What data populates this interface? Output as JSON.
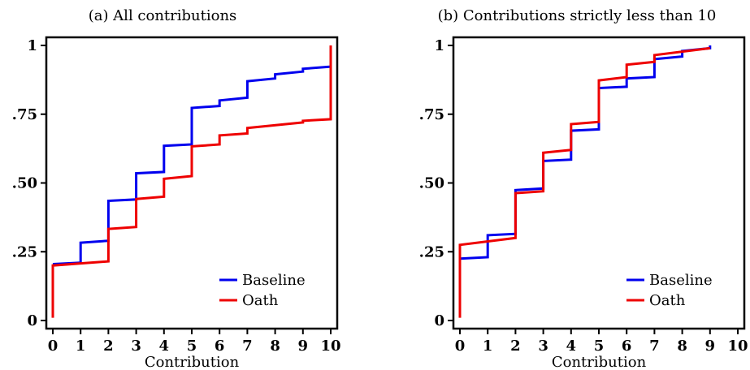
{
  "chart_data": [
    {
      "type": "line",
      "step": true,
      "title": "(a) All contributions",
      "xlabel": "Contribution",
      "ylabel": "",
      "xlim": [
        0,
        10
      ],
      "ylim": [
        0,
        1
      ],
      "x_ticks": [
        "0",
        "1",
        "2",
        "3",
        "4",
        "5",
        "6",
        "7",
        "8",
        "9",
        "10"
      ],
      "y_ticks": [
        {
          "value": 0,
          "label": "0"
        },
        {
          "value": 0.25,
          "label": ".25"
        },
        {
          "value": 0.5,
          "label": ".50"
        },
        {
          "value": 0.75,
          "label": ".75"
        },
        {
          "value": 1,
          "label": "1"
        }
      ],
      "legend_position": "bottom-right",
      "series": [
        {
          "name": "Baseline",
          "color": "#0000ee",
          "points": [
            [
              0,
              0.205
            ],
            [
              1,
              0.21
            ],
            [
              1,
              0.283
            ],
            [
              2,
              0.29
            ],
            [
              2,
              0.435
            ],
            [
              3,
              0.44
            ],
            [
              3,
              0.535
            ],
            [
              4,
              0.54
            ],
            [
              4,
              0.635
            ],
            [
              5,
              0.64
            ],
            [
              5,
              0.773
            ],
            [
              6,
              0.78
            ],
            [
              6,
              0.8
            ],
            [
              7,
              0.81
            ],
            [
              7,
              0.87
            ],
            [
              8,
              0.88
            ],
            [
              8,
              0.895
            ],
            [
              9,
              0.905
            ],
            [
              9,
              0.915
            ],
            [
              10,
              0.923
            ]
          ]
        },
        {
          "name": "Oath",
          "color": "#ee0000",
          "points": [
            [
              0,
              0.01
            ],
            [
              0,
              0.2
            ],
            [
              2,
              0.215
            ],
            [
              2,
              0.333
            ],
            [
              3,
              0.34
            ],
            [
              3,
              0.442
            ],
            [
              4,
              0.45
            ],
            [
              4,
              0.515
            ],
            [
              5,
              0.525
            ],
            [
              5,
              0.633
            ],
            [
              6,
              0.64
            ],
            [
              6,
              0.673
            ],
            [
              7,
              0.68
            ],
            [
              7,
              0.7
            ],
            [
              9,
              0.72
            ],
            [
              9,
              0.726
            ],
            [
              10,
              0.732
            ],
            [
              10,
              1.0
            ]
          ]
        }
      ]
    },
    {
      "type": "line",
      "step": true,
      "title": "(b) Contributions strictly less than 10",
      "xlabel": "Contribution",
      "ylabel": "",
      "xlim": [
        0,
        10
      ],
      "ylim": [
        0,
        1
      ],
      "x_ticks": [
        "0",
        "1",
        "2",
        "3",
        "4",
        "5",
        "6",
        "7",
        "8",
        "9",
        "10"
      ],
      "y_ticks": [
        {
          "value": 0,
          "label": "0"
        },
        {
          "value": 0.25,
          "label": ".25"
        },
        {
          "value": 0.5,
          "label": ".50"
        },
        {
          "value": 0.75,
          "label": ".75"
        },
        {
          "value": 1,
          "label": "1"
        }
      ],
      "legend_position": "bottom-right",
      "series": [
        {
          "name": "Baseline",
          "color": "#0000ee",
          "points": [
            [
              0,
              0.225
            ],
            [
              1,
              0.23
            ],
            [
              1,
              0.31
            ],
            [
              2,
              0.315
            ],
            [
              2,
              0.474
            ],
            [
              3,
              0.48
            ],
            [
              3,
              0.58
            ],
            [
              4,
              0.585
            ],
            [
              4,
              0.69
            ],
            [
              5,
              0.695
            ],
            [
              5,
              0.845
            ],
            [
              6,
              0.85
            ],
            [
              6,
              0.88
            ],
            [
              7,
              0.885
            ],
            [
              7,
              0.95
            ],
            [
              8,
              0.96
            ],
            [
              8,
              0.98
            ],
            [
              9,
              0.99
            ],
            [
              9,
              1.0
            ]
          ]
        },
        {
          "name": "Oath",
          "color": "#ee0000",
          "points": [
            [
              0,
              0.01
            ],
            [
              0,
              0.275
            ],
            [
              2,
              0.3
            ],
            [
              2,
              0.463
            ],
            [
              3,
              0.47
            ],
            [
              3,
              0.61
            ],
            [
              4,
              0.62
            ],
            [
              4,
              0.714
            ],
            [
              5,
              0.722
            ],
            [
              5,
              0.873
            ],
            [
              6,
              0.885
            ],
            [
              6,
              0.93
            ],
            [
              7,
              0.94
            ],
            [
              7,
              0.965
            ],
            [
              9,
              0.99
            ]
          ]
        }
      ]
    }
  ]
}
